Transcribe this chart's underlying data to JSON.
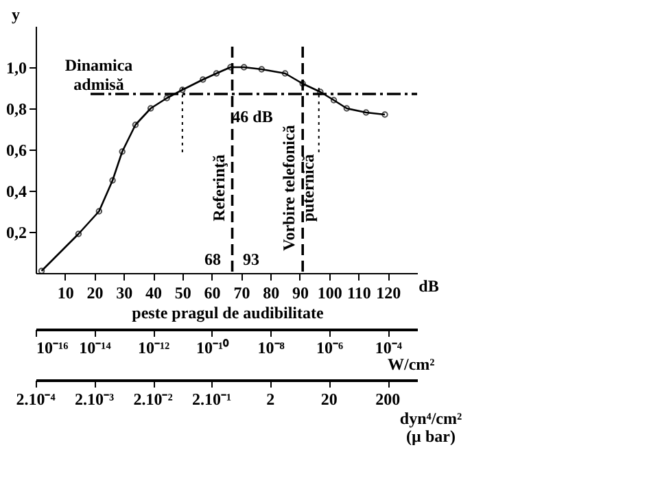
{
  "chart_data": {
    "type": "line",
    "xlabel": "dB",
    "ylabel": "y",
    "x2label": "W/cm²",
    "x": [
      2,
      14.6,
      21.6,
      26.2,
      29.5,
      34,
      39.2,
      44.7,
      50,
      57,
      61.6,
      66.4,
      71,
      77,
      85,
      91,
      97,
      101.6,
      106,
      112.6,
      119
    ],
    "series": [
      {
        "color": "#000000",
        "values": [
          0.01,
          0.19,
          0.3,
          0.45,
          0.59,
          0.72,
          0.8,
          0.85,
          0.89,
          0.94,
          0.97,
          1.0,
          1.0,
          0.99,
          0.97,
          0.92,
          0.88,
          0.84,
          0.8,
          0.78,
          0.77
        ]
      }
    ],
    "xlim": [
      0,
      130
    ],
    "ylim": [
      0,
      1.2
    ],
    "x2lim": [
      1e-16,
      0.001
    ],
    "log": "x2",
    "xticks": [
      10,
      20,
      30,
      40,
      50,
      60,
      70,
      80,
      90,
      100,
      110,
      120
    ],
    "yticks": [
      {
        "value": 0.2,
        "label": "0,2"
      },
      {
        "value": 0.4,
        "label": "0,4"
      },
      {
        "value": 0.6,
        "label": "0,6"
      },
      {
        "value": 0.8,
        "label": "0,8"
      },
      {
        "value": 1.0,
        "label": "1,0"
      }
    ],
    "x2ticks": [
      {
        "value": 1e-16,
        "label": "10⁻¹⁶"
      },
      {
        "value": 1e-14,
        "label": "10⁻¹⁴"
      },
      {
        "value": 1e-12,
        "label": "10⁻¹²"
      },
      {
        "value": 1e-10,
        "label": "10⁻¹⁰"
      },
      {
        "value": 1e-08,
        "label": "10⁻⁸"
      },
      {
        "value": 1e-06,
        "label": "10⁻⁶"
      },
      {
        "value": 0.0001,
        "label": "10⁻⁴"
      }
    ],
    "ref_lines": [
      {
        "axis": "y",
        "value": 0.87,
        "label": "Dinamica admisă",
        "line_style": "dashed"
      },
      {
        "axis": "x",
        "value": 67,
        "label": "Referinţă",
        "line_style": "dashed"
      },
      {
        "axis": "x",
        "value": 91,
        "label": "Vorbire telefonică\nputernică",
        "line_style": "dashed"
      },
      {
        "axis": "x",
        "value": 50,
        "label": null,
        "line_style": "dotted"
      },
      {
        "axis": "x",
        "value": 96.5,
        "label": null,
        "line_style": "dotted"
      }
    ],
    "annotations": [
      "46 dB",
      "68",
      "93",
      "peste pragul de audibilitate",
      "2.10⁻⁴",
      "2.10⁻³",
      "2.10⁻²",
      "2.10⁻¹",
      "2",
      "20",
      "200",
      "dyn⁴/cm²",
      "(µ bar)"
    ],
    "marker": "circle",
    "line_style": "solid",
    "grid": false
  }
}
